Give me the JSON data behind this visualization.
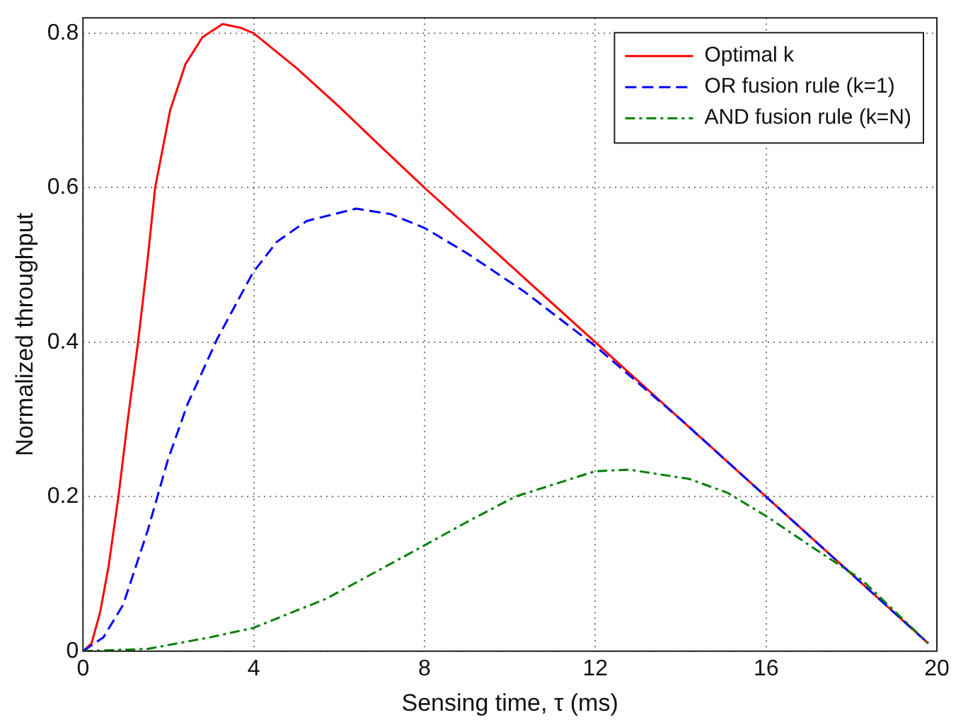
{
  "chart_data": {
    "type": "line",
    "xlabel": "Sensing time, τ (ms)",
    "ylabel": "Normalized throughput",
    "xlim": [
      0,
      20
    ],
    "ylim": [
      0,
      0.82
    ],
    "xticks": [
      0,
      4,
      8,
      12,
      16,
      20
    ],
    "yticks": [
      0,
      0.2,
      0.4,
      0.6,
      0.8
    ],
    "grid": true,
    "legend": "top right",
    "marker": "none",
    "series": [
      {
        "name": "Optimal k",
        "color": "#ff0000",
        "line_style": "solid",
        "x": [
          0,
          0.2,
          0.4,
          0.6,
          0.83,
          1.05,
          1.29,
          1.5,
          1.69,
          2.04,
          2.4,
          2.8,
          3.27,
          3.7,
          4,
          5,
          6,
          7,
          8,
          10,
          12,
          14,
          16,
          18,
          19.8
        ],
        "values": [
          0,
          0.01,
          0.05,
          0.11,
          0.2,
          0.3,
          0.4,
          0.5,
          0.6,
          0.7,
          0.76,
          0.795,
          0.812,
          0.807,
          0.8,
          0.755,
          0.705,
          0.652,
          0.6,
          0.5,
          0.4,
          0.3,
          0.2,
          0.1,
          0.01
        ]
      },
      {
        "name": "OR fusion rule (k=1)",
        "color": "#0000ff",
        "line_style": "dashed",
        "x": [
          0,
          0.48,
          0.94,
          1.52,
          1.99,
          2.45,
          3.15,
          3.98,
          4.54,
          5.24,
          6.4,
          7.2,
          8,
          9,
          10.35,
          12,
          14,
          16,
          18,
          19.8
        ],
        "values": [
          0,
          0.018,
          0.06,
          0.157,
          0.248,
          0.32,
          0.405,
          0.49,
          0.53,
          0.557,
          0.573,
          0.566,
          0.548,
          0.515,
          0.465,
          0.395,
          0.3,
          0.2,
          0.1,
          0.01
        ]
      },
      {
        "name": "AND fusion rule (k=N)",
        "color": "#008000",
        "line_style": "dashdot",
        "x": [
          0,
          1.52,
          2.98,
          3.98,
          5.7,
          8,
          8.95,
          10.12,
          12,
          12.8,
          14.2,
          15.1,
          16,
          17.1,
          18.25,
          19.8
        ],
        "values": [
          0,
          0.003,
          0.018,
          0.03,
          0.068,
          0.137,
          0.166,
          0.2,
          0.233,
          0.235,
          0.223,
          0.205,
          0.175,
          0.134,
          0.092,
          0.01
        ]
      }
    ]
  }
}
